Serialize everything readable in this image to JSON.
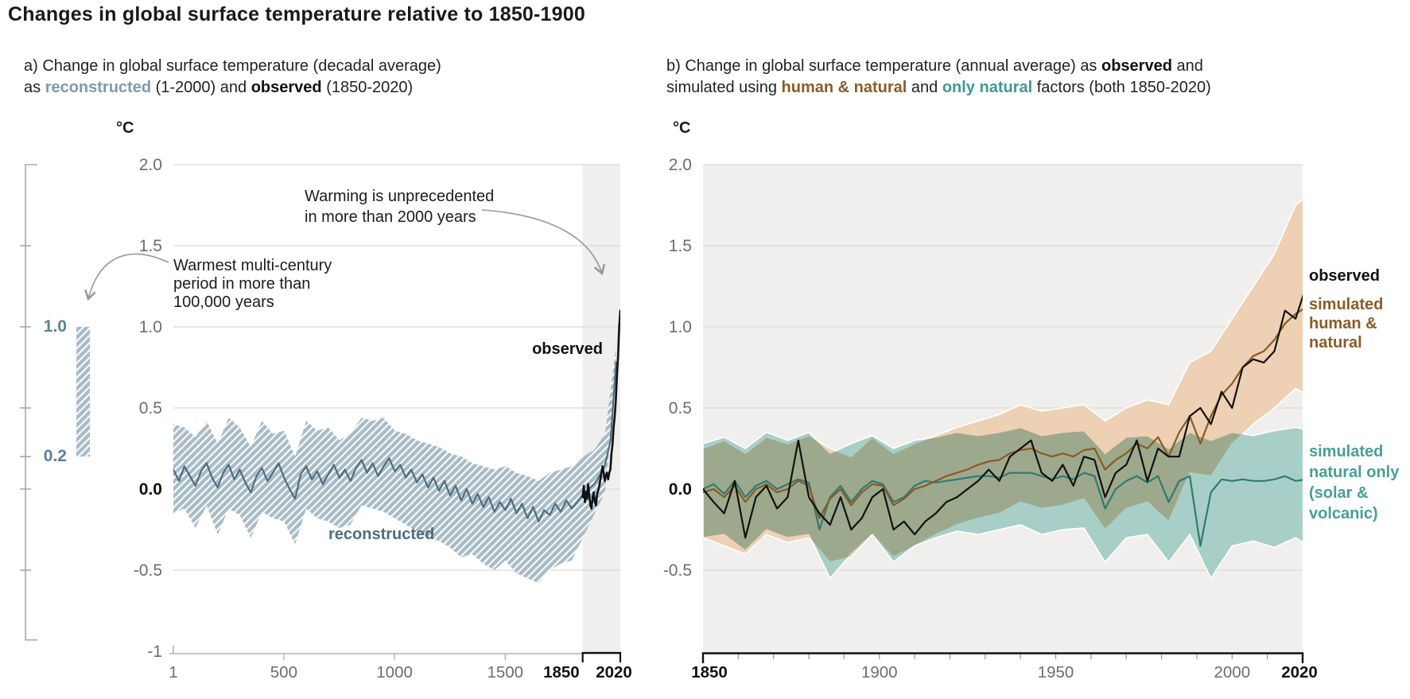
{
  "title": "Changes in global surface temperature relative to 1850-1900",
  "header": {
    "panel_a": {
      "line1": "a) Change in global surface temperature (decadal average)",
      "line2_parts": {
        "p0": "as ",
        "p1": "reconstructed",
        "p2": " (1-2000) and ",
        "p3": "observed",
        "p4": " (1850-2020)"
      }
    },
    "panel_b": {
      "line1_parts": {
        "p0": "b) Change in global surface temperature (annual average) as ",
        "p1": "observed",
        "p2": " and"
      },
      "line2_parts": {
        "p0": "simulated using ",
        "p1": "human & natural",
        "p2": " and ",
        "p3": "only natural",
        "p4": " factors (both 1850-2020)"
      }
    }
  },
  "colors": {
    "black": "#111111",
    "tick_text": "#6d6d6d",
    "grid": "#dadad7",
    "panel_bg": "#f0efed",
    "axis_gray": "#b3b3b0",
    "annot_gray": "#999999",
    "slate": "#4e6d80",
    "slate_band": "#a9bcc8",
    "slate_label": "#5d8199",
    "brown": "#8a5a25",
    "tan_band": "#eed0b4",
    "teal": "#2e7b72",
    "teal_band": "#a8cfc7",
    "teal_label": "#45a095"
  },
  "chart_data": [
    {
      "type": "line",
      "id": "panel_a",
      "title": "a) Change in global surface temperature (decadal average) as reconstructed (1-2000) and observed (1850-2020)",
      "ylabel": "°C",
      "ylim": [
        -1.0,
        2.0
      ],
      "xlim": [
        1,
        2020
      ],
      "grid": true,
      "yticks": [
        {
          "v": 2.0,
          "label": "2.0",
          "emph": false,
          "gridline": true
        },
        {
          "v": 1.5,
          "label": "1.5",
          "emph": false,
          "gridline": true
        },
        {
          "v": 1.0,
          "label": "1.0",
          "emph": false,
          "gridline": true
        },
        {
          "v": 0.5,
          "label": "0.5",
          "emph": false,
          "gridline": true
        },
        {
          "v": 0.0,
          "label": "0.0",
          "emph": true,
          "gridline": true
        },
        {
          "v": -0.5,
          "label": "-0.5",
          "emph": false,
          "gridline": true
        },
        {
          "v": -1.0,
          "label": "-1",
          "emph": false,
          "gridline": false
        }
      ],
      "xticks": [
        {
          "v": 1,
          "label": "1",
          "emph": false
        },
        {
          "v": 500,
          "label": "500",
          "emph": false
        },
        {
          "v": 1000,
          "label": "1000",
          "emph": false
        },
        {
          "v": 1500,
          "label": "1500",
          "emph": false
        },
        {
          "v": 1850,
          "label": "1850",
          "emph": true
        },
        {
          "v": 2020,
          "label": "2020",
          "emph": true
        }
      ],
      "shaded_region": [
        1850,
        2020
      ],
      "bracket": [
        1850,
        2020
      ],
      "side_scale": {
        "ticks": [
          1.5,
          1.0,
          0.5,
          0.2,
          0.0,
          -0.5
        ],
        "range": [
          2.0,
          -0.93
        ],
        "bar": [
          0.2,
          1.0
        ],
        "labeled_ticks": [
          "1.0",
          "0.2"
        ]
      },
      "annotations": {
        "warming": "Warming is unprecedented\nin more than 2000 years",
        "warmest": "Warmest multi-century\nperiod in more than\n100,000 years",
        "observed_label": "observed",
        "reconstructed_label": "reconstructed",
        "scale_1_0": "1.0",
        "scale_0_2": "0.2"
      },
      "series": [
        {
          "name": "reconstructed-range",
          "kind": "band",
          "x_start": 1,
          "x_step": 50,
          "fill": "hatch",
          "hi": [
            0.4,
            0.38,
            0.32,
            0.42,
            0.28,
            0.44,
            0.38,
            0.26,
            0.42,
            0.34,
            0.36,
            0.2,
            0.42,
            0.36,
            0.38,
            0.3,
            0.34,
            0.44,
            0.42,
            0.44,
            0.36,
            0.34,
            0.3,
            0.28,
            0.26,
            0.22,
            0.2,
            0.16,
            0.14,
            0.12,
            0.14,
            0.1,
            0.08,
            0.05,
            0.1,
            0.12,
            0.14,
            0.2,
            0.24,
            0.34,
            0.88
          ],
          "lo": [
            -0.15,
            -0.12,
            -0.24,
            -0.1,
            -0.28,
            -0.12,
            -0.16,
            -0.3,
            -0.14,
            -0.18,
            -0.2,
            -0.34,
            -0.12,
            -0.18,
            -0.2,
            -0.24,
            -0.22,
            -0.1,
            -0.12,
            -0.14,
            -0.18,
            -0.22,
            -0.26,
            -0.3,
            -0.32,
            -0.36,
            -0.42,
            -0.4,
            -0.46,
            -0.5,
            -0.44,
            -0.52,
            -0.55,
            -0.58,
            -0.5,
            -0.46,
            -0.44,
            -0.3,
            -0.16,
            -0.02,
            0.66
          ]
        },
        {
          "name": "reconstructed",
          "kind": "line",
          "x_start": 1,
          "x_step": 25,
          "color_key": "slate",
          "width": 2.2,
          "values": [
            0.12,
            0.05,
            0.14,
            0.08,
            0.02,
            0.11,
            0.16,
            0.07,
            0.01,
            0.1,
            0.15,
            0.06,
            0.12,
            0.04,
            -0.02,
            0.08,
            0.13,
            0.05,
            0.1,
            0.16,
            0.07,
            0.0,
            -0.06,
            0.09,
            0.14,
            0.06,
            0.11,
            0.03,
            0.09,
            0.15,
            0.07,
            0.12,
            0.05,
            0.13,
            0.18,
            0.1,
            0.16,
            0.08,
            0.14,
            0.19,
            0.11,
            0.15,
            0.07,
            0.12,
            0.04,
            0.09,
            0.01,
            0.07,
            -0.01,
            0.05,
            -0.04,
            0.02,
            -0.07,
            0.0,
            -0.09,
            -0.03,
            -0.11,
            -0.05,
            -0.14,
            -0.08,
            -0.13,
            -0.06,
            -0.15,
            -0.09,
            -0.18,
            -0.11,
            -0.2,
            -0.13,
            -0.16,
            -0.09,
            -0.14,
            -0.07,
            -0.12,
            -0.08,
            -0.03,
            0.0,
            0.03,
            0.08,
            0.15,
            0.3,
            0.78
          ]
        },
        {
          "name": "observed",
          "kind": "line",
          "x_start": 1850,
          "x_step": 5,
          "color_key": "black",
          "width": 2.6,
          "values": [
            -0.05,
            0.02,
            -0.08,
            -0.02,
            -0.06,
            0.03,
            -0.04,
            -0.1,
            -0.12,
            -0.05,
            -0.02,
            -0.08,
            -0.1,
            -0.03,
            -0.01,
            0.02,
            0.06,
            0.1,
            0.14,
            0.1,
            0.05,
            0.08,
            0.1,
            0.06,
            0.1,
            0.12,
            0.22,
            0.28,
            0.38,
            0.45,
            0.55,
            0.7,
            0.82,
            1.0,
            1.1
          ]
        }
      ]
    },
    {
      "type": "line",
      "id": "panel_b",
      "title": "b) Change in global surface temperature (annual average) as observed and simulated using human & natural and only natural factors (both 1850-2020)",
      "ylabel": "°C",
      "ylim": [
        -1.0,
        2.0
      ],
      "xlim": [
        1850,
        2020
      ],
      "grid": true,
      "yticks": [
        {
          "v": 2.0,
          "label": "2.0",
          "emph": false,
          "gridline": true
        },
        {
          "v": 1.5,
          "label": "1.5",
          "emph": false,
          "gridline": true
        },
        {
          "v": 1.0,
          "label": "1.0",
          "emph": false,
          "gridline": true
        },
        {
          "v": 0.5,
          "label": "0.5",
          "emph": false,
          "gridline": true
        },
        {
          "v": 0.0,
          "label": "0.0",
          "emph": true,
          "gridline": true
        },
        {
          "v": -0.5,
          "label": "-0.5",
          "emph": false,
          "gridline": true
        }
      ],
      "xticks": [
        {
          "v": 1850,
          "label": "1850",
          "emph": true
        },
        {
          "v": 1900,
          "label": "1900",
          "emph": false
        },
        {
          "v": 1950,
          "label": "1950",
          "emph": false
        },
        {
          "v": 2000,
          "label": "2000",
          "emph": false
        },
        {
          "v": 2020,
          "label": "2020",
          "emph": true
        }
      ],
      "minor_tick_step": 10,
      "legend_labels": {
        "observed": "observed",
        "sim_human_natural": "simulated\nhuman &\nnatural",
        "sim_natural_only": "simulated\nnatural only\n(solar &\nvolcanic)"
      },
      "series": [
        {
          "name": "human-natural-range",
          "kind": "band",
          "x_start": 1850,
          "x_step": 6,
          "color_key": "tan_band",
          "outline": true,
          "hi": [
            0.25,
            0.3,
            0.22,
            0.32,
            0.28,
            0.33,
            0.25,
            0.2,
            0.32,
            0.22,
            0.28,
            0.33,
            0.38,
            0.42,
            0.46,
            0.52,
            0.48,
            0.5,
            0.52,
            0.42,
            0.5,
            0.55,
            0.52,
            0.78,
            0.85,
            1.05,
            1.25,
            1.45,
            1.75,
            1.85
          ],
          "lo": [
            -0.3,
            -0.35,
            -0.4,
            -0.28,
            -0.33,
            -0.3,
            -0.45,
            -0.42,
            -0.28,
            -0.42,
            -0.35,
            -0.28,
            -0.22,
            -0.18,
            -0.15,
            -0.08,
            -0.12,
            -0.1,
            -0.06,
            -0.25,
            -0.12,
            -0.08,
            -0.2,
            0.1,
            0.08,
            0.28,
            0.4,
            0.5,
            0.62,
            0.55
          ]
        },
        {
          "name": "natural-only-range",
          "kind": "band",
          "x_start": 1850,
          "x_step": 6,
          "color_key": "teal_band",
          "outline": true,
          "blend": "multiply",
          "hi": [
            0.28,
            0.32,
            0.25,
            0.35,
            0.3,
            0.35,
            0.22,
            0.28,
            0.33,
            0.25,
            0.3,
            0.32,
            0.35,
            0.33,
            0.35,
            0.38,
            0.33,
            0.35,
            0.36,
            0.22,
            0.32,
            0.33,
            0.25,
            0.35,
            0.3,
            0.35,
            0.33,
            0.36,
            0.38,
            0.35
          ],
          "lo": [
            -0.3,
            -0.28,
            -0.38,
            -0.25,
            -0.3,
            -0.28,
            -0.55,
            -0.4,
            -0.28,
            -0.45,
            -0.35,
            -0.3,
            -0.26,
            -0.28,
            -0.25,
            -0.22,
            -0.28,
            -0.25,
            -0.24,
            -0.45,
            -0.3,
            -0.28,
            -0.45,
            -0.28,
            -0.55,
            -0.35,
            -0.32,
            -0.36,
            -0.3,
            -0.38
          ]
        },
        {
          "name": "simulated-natural-only",
          "kind": "line",
          "x_start": 1850,
          "x_step": 3,
          "color_key": "teal",
          "width": 2.2,
          "values": [
            0.0,
            0.03,
            -0.03,
            0.05,
            -0.05,
            0.02,
            0.05,
            0.0,
            0.03,
            0.06,
            0.04,
            -0.25,
            -0.05,
            0.02,
            -0.08,
            0.0,
            0.05,
            0.03,
            -0.08,
            -0.05,
            0.02,
            0.05,
            0.04,
            0.05,
            0.06,
            0.07,
            0.08,
            0.08,
            0.07,
            0.1,
            0.1,
            0.1,
            0.08,
            0.06,
            0.08,
            0.06,
            0.1,
            0.08,
            -0.12,
            0.0,
            0.05,
            0.08,
            0.04,
            0.08,
            -0.08,
            0.05,
            0.08,
            -0.35,
            -0.02,
            0.06,
            0.05,
            0.06,
            0.05,
            0.05,
            0.06,
            0.08,
            0.05,
            0.06
          ]
        },
        {
          "name": "simulated-human-natural",
          "kind": "line",
          "x_start": 1850,
          "x_step": 3,
          "color_key": "brown",
          "width": 2.2,
          "values": [
            -0.02,
            0.0,
            -0.05,
            0.02,
            -0.08,
            0.0,
            0.03,
            -0.02,
            0.0,
            0.05,
            0.02,
            -0.18,
            -0.06,
            0.0,
            -0.1,
            -0.02,
            0.03,
            0.02,
            -0.1,
            -0.06,
            0.0,
            0.02,
            0.05,
            0.08,
            0.1,
            0.12,
            0.15,
            0.17,
            0.18,
            0.22,
            0.24,
            0.25,
            0.22,
            0.2,
            0.22,
            0.2,
            0.24,
            0.25,
            0.12,
            0.18,
            0.22,
            0.28,
            0.25,
            0.32,
            0.2,
            0.35,
            0.45,
            0.28,
            0.45,
            0.58,
            0.65,
            0.75,
            0.82,
            0.85,
            0.92,
            1.02,
            1.08,
            1.12
          ]
        },
        {
          "name": "observed",
          "kind": "line",
          "x_start": 1850,
          "x_step": 3,
          "color_key": "black",
          "width": 2.2,
          "values": [
            0.0,
            -0.08,
            -0.15,
            0.05,
            -0.3,
            -0.05,
            0.02,
            -0.12,
            -0.05,
            0.3,
            -0.05,
            -0.15,
            -0.22,
            -0.05,
            -0.25,
            -0.18,
            -0.05,
            0.0,
            -0.25,
            -0.2,
            -0.28,
            -0.2,
            -0.15,
            -0.08,
            -0.05,
            0.0,
            0.05,
            0.12,
            0.05,
            0.2,
            0.25,
            0.3,
            0.1,
            0.05,
            0.15,
            0.02,
            0.2,
            0.18,
            -0.05,
            0.1,
            0.15,
            0.3,
            0.05,
            0.25,
            0.2,
            0.2,
            0.45,
            0.5,
            0.4,
            0.6,
            0.5,
            0.75,
            0.8,
            0.78,
            0.85,
            1.1,
            1.05,
            1.25
          ]
        }
      ]
    }
  ]
}
